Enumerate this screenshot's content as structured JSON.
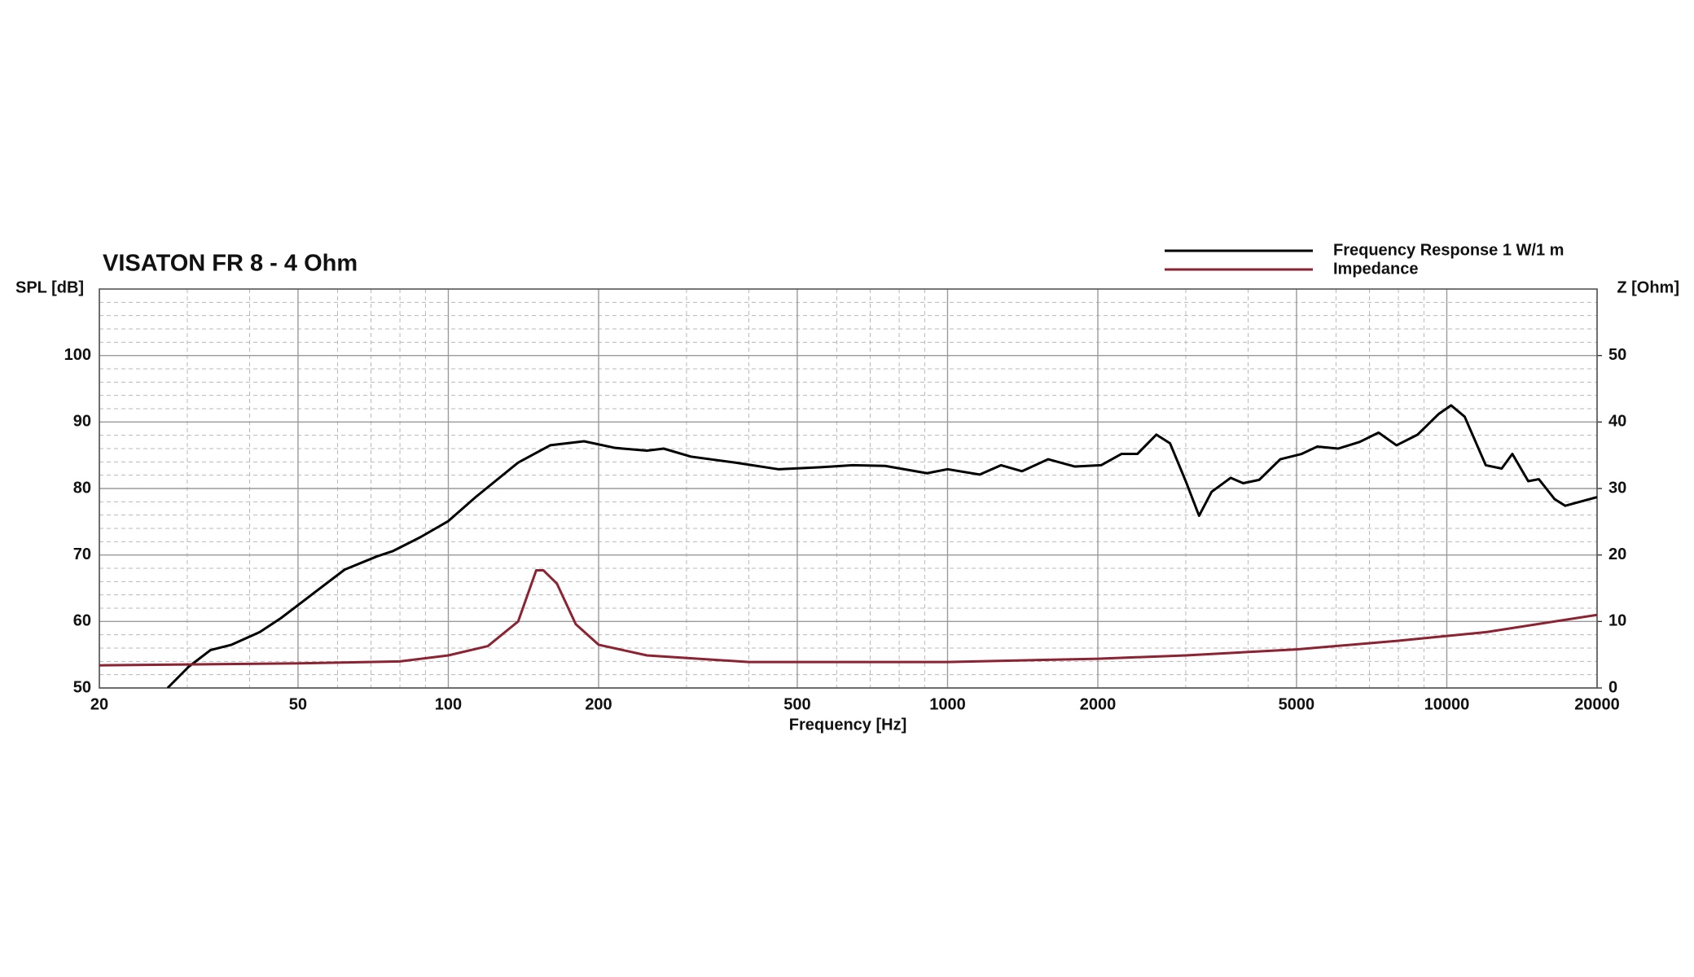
{
  "chart_data": {
    "type": "line",
    "title": "VISATON FR 8 - 4 Ohm",
    "xlabel": "Frequency [Hz]",
    "ylabel": "SPL [dB]",
    "y2label": "Z [Ohm]",
    "xscale": "log",
    "xlim": [
      20,
      20000
    ],
    "xticks": [
      20,
      50,
      100,
      200,
      500,
      1000,
      2000,
      5000,
      10000,
      20000
    ],
    "xminorticks": [
      30,
      40,
      60,
      70,
      80,
      90,
      300,
      400,
      600,
      700,
      800,
      900,
      3000,
      4000,
      6000,
      7000,
      8000,
      9000
    ],
    "ylim": [
      50,
      110
    ],
    "yticks": [
      50,
      60,
      70,
      80,
      90,
      100
    ],
    "yminorticks": [
      52,
      54,
      56,
      58,
      62,
      64,
      66,
      68,
      72,
      74,
      76,
      78,
      82,
      84,
      86,
      88,
      92,
      94,
      96,
      98,
      102,
      104,
      106,
      108
    ],
    "y2lim": [
      0,
      60
    ],
    "y2ticks": [
      0,
      10,
      20,
      30,
      40,
      50
    ],
    "grid": true,
    "legend": "top-right",
    "series": [
      {
        "name": "Frequency Response 1 W/1 m",
        "color": "#000000",
        "x": [
          27.4,
          30.2,
          33.4,
          36.8,
          41.9,
          46.2,
          53.4,
          62,
          72,
          77.5,
          88,
          100,
          113.4,
          138,
          160,
          187,
          216,
          250,
          270,
          306,
          375,
          458,
          557,
          645,
          750,
          910,
          1000,
          1160,
          1280,
          1410,
          1590,
          1800,
          2030,
          2230,
          2400,
          2620,
          2790,
          3000,
          3190,
          3380,
          3690,
          3910,
          4210,
          4640,
          5120,
          5500,
          6060,
          6690,
          7300,
          7930,
          8740,
          9630,
          10200,
          10860,
          11970,
          12880,
          13530,
          14560,
          15290,
          16440,
          17270,
          20000
        ],
        "values": [
          50,
          53.2,
          55.7,
          56.5,
          58.4,
          60.5,
          64.1,
          67.8,
          69.8,
          70.6,
          72.7,
          75.1,
          78.7,
          83.9,
          86.5,
          87.1,
          86.1,
          85.7,
          86,
          84.8,
          83.9,
          82.9,
          83.2,
          83.5,
          83.4,
          82.3,
          82.9,
          82.1,
          83.5,
          82.6,
          84.4,
          83.3,
          83.5,
          85.2,
          85.2,
          88.1,
          86.8,
          81.1,
          75.9,
          79.5,
          81.6,
          80.8,
          81.3,
          84.4,
          85.2,
          86.3,
          86,
          87,
          88.4,
          86.5,
          88.1,
          91.2,
          92.5,
          90.8,
          83.5,
          83,
          85.2,
          81.1,
          81.4,
          78.4,
          77.4,
          78.7
        ]
      },
      {
        "name": "Impedance",
        "color": "#8b2332",
        "axis": "y2",
        "x": [
          20,
          50,
          80,
          100,
          120,
          138,
          150,
          155,
          165,
          180,
          200,
          250,
          400,
          1000,
          2000,
          3000,
          5000,
          8000,
          12000,
          20000
        ],
        "values": [
          3.4,
          3.7,
          4,
          4.9,
          6.3,
          10,
          17.7,
          17.7,
          15.7,
          9.6,
          6.5,
          4.9,
          3.9,
          3.9,
          4.4,
          4.9,
          5.8,
          7.1,
          8.4,
          11
        ]
      }
    ]
  }
}
